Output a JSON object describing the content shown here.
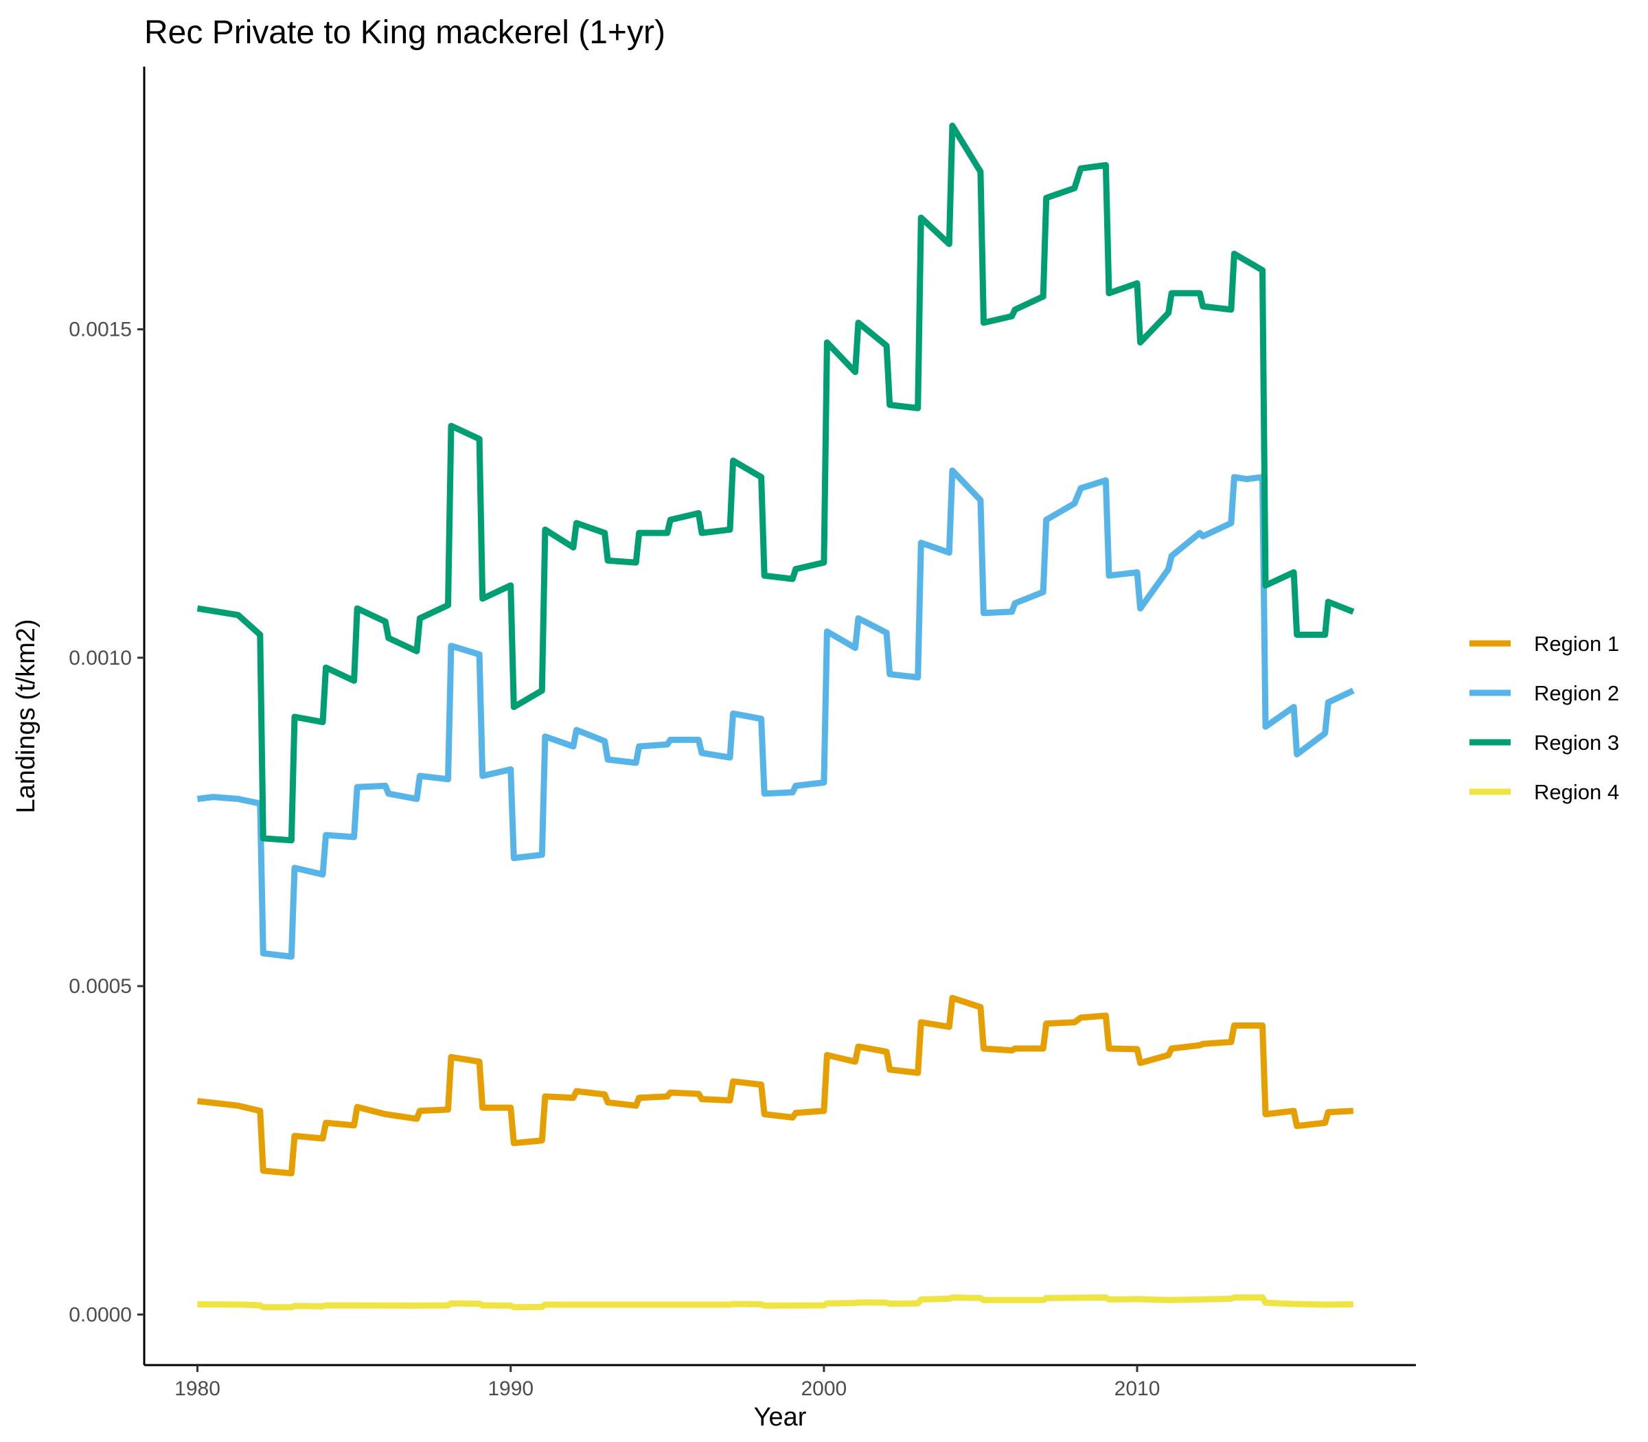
{
  "chart_data": {
    "type": "line",
    "title": "Rec Private to King mackerel (1+yr)",
    "xlabel": "Year",
    "ylabel": "Landings (t/km2)",
    "xlim": [
      1978.3,
      2018.9
    ],
    "ylim": [
      -7.7e-05,
      0.0019
    ],
    "xticks": [
      1980,
      1990,
      2000,
      2010
    ],
    "xtick_labels": [
      "1980",
      "1990",
      "2000",
      "2010"
    ],
    "yticks": [
      0.0,
      0.0005,
      0.001,
      0.0015
    ],
    "ytick_labels": [
      "0.0000",
      "0.0005",
      "0.0010",
      "0.0015"
    ],
    "grid": false,
    "legend_position": "right",
    "series": [
      {
        "name": "Region 1",
        "color": "#E69F00",
        "points": [
          [
            1980.0,
            0.000325
          ],
          [
            1981.3,
            0.000318
          ],
          [
            1982.0,
            0.00031
          ],
          [
            1982.1,
            0.000219
          ],
          [
            1983.0,
            0.000215
          ],
          [
            1983.1,
            0.000272
          ],
          [
            1984.0,
            0.000268
          ],
          [
            1984.1,
            0.000292
          ],
          [
            1985.0,
            0.000288
          ],
          [
            1985.1,
            0.000316
          ],
          [
            1986.0,
            0.000305
          ],
          [
            1987.0,
            0.000298
          ],
          [
            1987.1,
            0.00031
          ],
          [
            1988.0,
            0.000312
          ],
          [
            1988.1,
            0.000392
          ],
          [
            1989.0,
            0.000385
          ],
          [
            1989.1,
            0.000315
          ],
          [
            1990.0,
            0.000315
          ],
          [
            1990.1,
            0.000261
          ],
          [
            1991.0,
            0.000265
          ],
          [
            1991.1,
            0.000332
          ],
          [
            1992.0,
            0.00033
          ],
          [
            1992.1,
            0.00034
          ],
          [
            1993.0,
            0.000335
          ],
          [
            1993.1,
            0.000323
          ],
          [
            1994.0,
            0.000318
          ],
          [
            1994.1,
            0.00033
          ],
          [
            1995.0,
            0.000332
          ],
          [
            1995.1,
            0.000338
          ],
          [
            1996.0,
            0.000336
          ],
          [
            1996.1,
            0.000328
          ],
          [
            1997.0,
            0.000326
          ],
          [
            1997.1,
            0.000355
          ],
          [
            1998.0,
            0.00035
          ],
          [
            1998.1,
            0.000305
          ],
          [
            1999.0,
            0.0003
          ],
          [
            1999.1,
            0.000307
          ],
          [
            2000.0,
            0.00031
          ],
          [
            2000.1,
            0.000395
          ],
          [
            2001.0,
            0.000385
          ],
          [
            2001.1,
            0.000408
          ],
          [
            2002.0,
            0.0004
          ],
          [
            2002.1,
            0.000373
          ],
          [
            2003.0,
            0.000368
          ],
          [
            2003.1,
            0.000445
          ],
          [
            2004.0,
            0.000438
          ],
          [
            2004.1,
            0.000482
          ],
          [
            2005.0,
            0.000468
          ],
          [
            2005.1,
            0.000405
          ],
          [
            2006.0,
            0.000402
          ],
          [
            2006.1,
            0.000405
          ],
          [
            2007.0,
            0.000405
          ],
          [
            2007.1,
            0.000443
          ],
          [
            2008.0,
            0.000445
          ],
          [
            2008.2,
            0.000452
          ],
          [
            2009.0,
            0.000455
          ],
          [
            2009.1,
            0.000405
          ],
          [
            2010.0,
            0.000404
          ],
          [
            2010.1,
            0.000383
          ],
          [
            2011.0,
            0.000395
          ],
          [
            2011.1,
            0.000405
          ],
          [
            2012.0,
            0.00041
          ],
          [
            2012.1,
            0.000412
          ],
          [
            2013.0,
            0.000415
          ],
          [
            2013.1,
            0.00044
          ],
          [
            2014.0,
            0.00044
          ],
          [
            2014.1,
            0.000305
          ],
          [
            2015.0,
            0.00031
          ],
          [
            2015.1,
            0.000287
          ],
          [
            2016.0,
            0.000292
          ],
          [
            2016.1,
            0.000308
          ],
          [
            2016.9,
            0.00031
          ]
        ]
      },
      {
        "name": "Region 2",
        "color": "#56B4E9",
        "points": [
          [
            1980.0,
            0.000785
          ],
          [
            1980.5,
            0.000788
          ],
          [
            1981.3,
            0.000785
          ],
          [
            1982.0,
            0.000778
          ],
          [
            1982.1,
            0.00055
          ],
          [
            1983.0,
            0.000545
          ],
          [
            1983.1,
            0.00068
          ],
          [
            1984.0,
            0.00067
          ],
          [
            1984.1,
            0.00073
          ],
          [
            1985.0,
            0.000727
          ],
          [
            1985.1,
            0.000803
          ],
          [
            1986.0,
            0.000805
          ],
          [
            1986.1,
            0.000793
          ],
          [
            1987.0,
            0.000785
          ],
          [
            1987.1,
            0.00082
          ],
          [
            1988.0,
            0.000815
          ],
          [
            1988.1,
            0.001018
          ],
          [
            1989.0,
            0.001005
          ],
          [
            1989.1,
            0.00082
          ],
          [
            1990.0,
            0.00083
          ],
          [
            1990.1,
            0.000695
          ],
          [
            1991.0,
            0.0007
          ],
          [
            1991.1,
            0.00088
          ],
          [
            1992.0,
            0.000865
          ],
          [
            1992.1,
            0.00089
          ],
          [
            1993.0,
            0.000873
          ],
          [
            1993.1,
            0.000845
          ],
          [
            1994.0,
            0.00084
          ],
          [
            1994.1,
            0.000865
          ],
          [
            1995.0,
            0.000868
          ],
          [
            1995.1,
            0.000875
          ],
          [
            1996.0,
            0.000875
          ],
          [
            1996.1,
            0.000855
          ],
          [
            1997.0,
            0.000848
          ],
          [
            1997.1,
            0.000915
          ],
          [
            1998.0,
            0.000907
          ],
          [
            1998.1,
            0.000793
          ],
          [
            1999.0,
            0.000795
          ],
          [
            1999.1,
            0.000805
          ],
          [
            2000.0,
            0.00081
          ],
          [
            2000.1,
            0.00104
          ],
          [
            2001.0,
            0.001015
          ],
          [
            2001.1,
            0.00106
          ],
          [
            2002.0,
            0.001038
          ],
          [
            2002.1,
            0.000975
          ],
          [
            2003.0,
            0.00097
          ],
          [
            2003.1,
            0.001175
          ],
          [
            2004.0,
            0.00116
          ],
          [
            2004.1,
            0.001285
          ],
          [
            2005.0,
            0.00124
          ],
          [
            2005.1,
            0.001068
          ],
          [
            2006.0,
            0.00107
          ],
          [
            2006.1,
            0.001083
          ],
          [
            2007.0,
            0.0011
          ],
          [
            2007.1,
            0.00121
          ],
          [
            2008.0,
            0.001235
          ],
          [
            2008.2,
            0.001258
          ],
          [
            2009.0,
            0.00127
          ],
          [
            2009.1,
            0.001125
          ],
          [
            2010.0,
            0.00113
          ],
          [
            2010.1,
            0.001075
          ],
          [
            2011.0,
            0.001135
          ],
          [
            2011.1,
            0.001155
          ],
          [
            2012.0,
            0.00119
          ],
          [
            2012.1,
            0.001185
          ],
          [
            2013.0,
            0.001205
          ],
          [
            2013.1,
            0.001275
          ],
          [
            2013.5,
            0.001272
          ],
          [
            2014.0,
            0.001275
          ],
          [
            2014.1,
            0.000895
          ],
          [
            2015.0,
            0.000925
          ],
          [
            2015.1,
            0.000853
          ],
          [
            2016.0,
            0.000885
          ],
          [
            2016.1,
            0.000932
          ],
          [
            2016.9,
            0.00095
          ]
        ]
      },
      {
        "name": "Region 3",
        "color": "#009E73",
        "points": [
          [
            1980.0,
            0.001075
          ],
          [
            1981.3,
            0.001065
          ],
          [
            1982.0,
            0.001035
          ],
          [
            1982.1,
            0.000725
          ],
          [
            1983.0,
            0.000722
          ],
          [
            1983.1,
            0.00091
          ],
          [
            1984.0,
            0.000902
          ],
          [
            1984.1,
            0.000985
          ],
          [
            1985.0,
            0.000965
          ],
          [
            1985.1,
            0.001075
          ],
          [
            1986.0,
            0.001055
          ],
          [
            1986.1,
            0.00103
          ],
          [
            1987.0,
            0.00101
          ],
          [
            1987.1,
            0.00106
          ],
          [
            1988.0,
            0.00108
          ],
          [
            1988.1,
            0.001353
          ],
          [
            1989.0,
            0.001333
          ],
          [
            1989.1,
            0.00109
          ],
          [
            1990.0,
            0.00111
          ],
          [
            1990.1,
            0.000925
          ],
          [
            1991.0,
            0.00095
          ],
          [
            1991.1,
            0.001195
          ],
          [
            1992.0,
            0.001168
          ],
          [
            1992.1,
            0.001205
          ],
          [
            1993.0,
            0.00119
          ],
          [
            1993.1,
            0.001148
          ],
          [
            1994.0,
            0.001145
          ],
          [
            1994.1,
            0.00119
          ],
          [
            1995.0,
            0.00119
          ],
          [
            1995.1,
            0.00121
          ],
          [
            1996.0,
            0.00122
          ],
          [
            1996.1,
            0.00119
          ],
          [
            1997.0,
            0.001195
          ],
          [
            1997.1,
            0.0013
          ],
          [
            1998.0,
            0.001275
          ],
          [
            1998.1,
            0.001125
          ],
          [
            1999.0,
            0.00112
          ],
          [
            1999.1,
            0.001135
          ],
          [
            2000.0,
            0.001145
          ],
          [
            2000.1,
            0.00148
          ],
          [
            2001.0,
            0.001435
          ],
          [
            2001.1,
            0.00151
          ],
          [
            2002.0,
            0.001475
          ],
          [
            2002.1,
            0.001385
          ],
          [
            2003.0,
            0.00138
          ],
          [
            2003.1,
            0.00167
          ],
          [
            2004.0,
            0.00163
          ],
          [
            2004.1,
            0.00181
          ],
          [
            2005.0,
            0.00174
          ],
          [
            2005.1,
            0.00151
          ],
          [
            2006.0,
            0.00152
          ],
          [
            2006.1,
            0.00153
          ],
          [
            2007.0,
            0.00155
          ],
          [
            2007.1,
            0.0017
          ],
          [
            2008.0,
            0.001715
          ],
          [
            2008.2,
            0.001745
          ],
          [
            2009.0,
            0.00175
          ],
          [
            2009.1,
            0.001555
          ],
          [
            2010.0,
            0.00157
          ],
          [
            2010.1,
            0.00148
          ],
          [
            2011.0,
            0.001525
          ],
          [
            2011.1,
            0.001555
          ],
          [
            2012.0,
            0.001555
          ],
          [
            2012.1,
            0.001535
          ],
          [
            2013.0,
            0.00153
          ],
          [
            2013.1,
            0.001615
          ],
          [
            2014.0,
            0.00159
          ],
          [
            2014.1,
            0.00111
          ],
          [
            2015.0,
            0.00113
          ],
          [
            2015.1,
            0.001035
          ],
          [
            2016.0,
            0.001035
          ],
          [
            2016.1,
            0.001085
          ],
          [
            2016.9,
            0.00107
          ]
        ]
      },
      {
        "name": "Region 4",
        "color": "#F0E442",
        "points": [
          [
            1980.0,
            1.55e-05
          ],
          [
            1981.5,
            1.5e-05
          ],
          [
            1982.0,
            1.4e-05
          ],
          [
            1982.1,
            1.1e-05
          ],
          [
            1983.0,
            1.1e-05
          ],
          [
            1983.1,
            1.3e-05
          ],
          [
            1984.0,
            1.25e-05
          ],
          [
            1984.1,
            1.4e-05
          ],
          [
            1987.0,
            1.35e-05
          ],
          [
            1988.0,
            1.4e-05
          ],
          [
            1988.1,
            1.7e-05
          ],
          [
            1989.0,
            1.65e-05
          ],
          [
            1989.1,
            1.4e-05
          ],
          [
            1990.0,
            1.35e-05
          ],
          [
            1990.1,
            1.1e-05
          ],
          [
            1991.0,
            1.15e-05
          ],
          [
            1991.1,
            1.5e-05
          ],
          [
            1997.0,
            1.5e-05
          ],
          [
            1997.1,
            1.6e-05
          ],
          [
            1998.0,
            1.55e-05
          ],
          [
            1998.1,
            1.35e-05
          ],
          [
            2000.0,
            1.4e-05
          ],
          [
            2000.1,
            1.7e-05
          ],
          [
            2001.0,
            1.75e-05
          ],
          [
            2001.1,
            1.85e-05
          ],
          [
            2002.0,
            1.8e-05
          ],
          [
            2002.1,
            1.65e-05
          ],
          [
            2003.0,
            1.7e-05
          ],
          [
            2003.1,
            2.3e-05
          ],
          [
            2004.0,
            2.4e-05
          ],
          [
            2004.1,
            2.6e-05
          ],
          [
            2005.0,
            2.5e-05
          ],
          [
            2005.1,
            2.2e-05
          ],
          [
            2007.0,
            2.2e-05
          ],
          [
            2007.1,
            2.5e-05
          ],
          [
            2009.0,
            2.6e-05
          ],
          [
            2009.1,
            2.3e-05
          ],
          [
            2010.0,
            2.35e-05
          ],
          [
            2011.0,
            2.2e-05
          ],
          [
            2013.0,
            2.4e-05
          ],
          [
            2013.1,
            2.6e-05
          ],
          [
            2014.0,
            2.6e-05
          ],
          [
            2014.1,
            1.8e-05
          ],
          [
            2015.0,
            1.6e-05
          ],
          [
            2016.0,
            1.5e-05
          ],
          [
            2016.9,
            1.55e-05
          ]
        ]
      }
    ]
  }
}
